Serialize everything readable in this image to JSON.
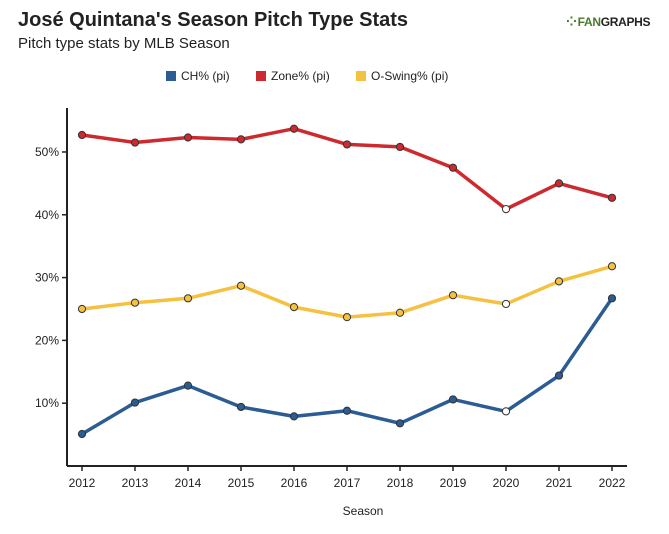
{
  "header": {
    "title": "José Quintana's Season Pitch Type Stats",
    "subtitle": "Pitch type stats by MLB Season"
  },
  "logo": {
    "mark": "⁘",
    "part1": "FAN",
    "part2": "GRAPHS"
  },
  "chart_data": {
    "type": "line",
    "x": [
      2012,
      2013,
      2014,
      2015,
      2016,
      2017,
      2018,
      2019,
      2020,
      2021,
      2022
    ],
    "xlabel": "Season",
    "ylabel": "",
    "ylim": [
      0,
      57
    ],
    "yticks": [
      10,
      20,
      30,
      40,
      50
    ],
    "ytick_labels": [
      "10%",
      "20%",
      "30%",
      "40%",
      "50%"
    ],
    "grid": false,
    "legend_position": "top",
    "series": [
      {
        "name": "CH% (pi)",
        "color": "#2b5c93",
        "values": [
          5.1,
          10.1,
          12.8,
          9.4,
          7.9,
          8.8,
          6.8,
          10.6,
          8.7,
          14.4,
          26.7
        ],
        "hollow_index": 8
      },
      {
        "name": "Zone% (pi)",
        "color": "#cc2a2f",
        "values": [
          52.7,
          51.5,
          52.3,
          52.0,
          53.7,
          51.2,
          50.8,
          47.5,
          40.9,
          45.0,
          42.7
        ],
        "hollow_index": 8
      },
      {
        "name": "O-Swing% (pi)",
        "color": "#f5c141",
        "values": [
          25.0,
          26.0,
          26.7,
          28.7,
          25.3,
          23.7,
          24.4,
          27.2,
          25.8,
          29.4,
          31.8
        ],
        "hollow_index": 8
      }
    ]
  }
}
